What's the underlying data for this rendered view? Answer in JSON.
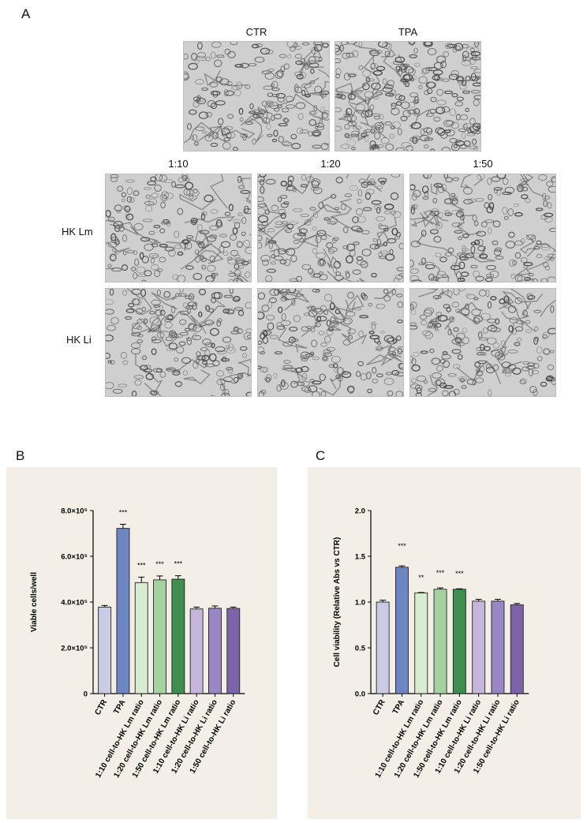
{
  "panels": {
    "a": "A",
    "b": "B",
    "c": "C"
  },
  "panel_a": {
    "top_labels": [
      "CTR",
      "TPA"
    ],
    "ratio_labels": [
      "1:10",
      "1:20",
      "1:50"
    ],
    "row_labels": [
      "HK Lm",
      "HK Li"
    ]
  },
  "colors": {
    "ctr": "#c9cce4",
    "tpa": "#6d86c2",
    "lm10": "#d8ecd2",
    "lm20": "#a5d2a0",
    "lm50": "#3e8e4f",
    "li10": "#c5b6da",
    "li20": "#9a86c4",
    "li50": "#7b65a8"
  },
  "chart_data": [
    {
      "type": "bar",
      "ylabel": "Viable cells/well",
      "ylim": [
        0,
        800000
      ],
      "yticks": [
        "0",
        "2.0×10⁵",
        "4.0×10⁵",
        "6.0×10⁵",
        "8.0×10⁵"
      ],
      "categories": [
        "CTR",
        "TPA",
        "1:10 cell-to-HK Lm ratio",
        "1:20 cell-to-HK Lm ratio",
        "1:50 cell-to-HK Lm ratio",
        "1:10 cell-to-HK Li ratio",
        "1:20 cell-to-HK Li ratio",
        "1:50 cell-to-HK Li ratio"
      ],
      "values": [
        378000,
        722000,
        485000,
        497000,
        500000,
        370000,
        373000,
        372000
      ],
      "errors": [
        7000,
        18000,
        24000,
        17000,
        15000,
        8000,
        10000,
        6000
      ],
      "annotations": [
        "",
        "***",
        "***",
        "***",
        "***",
        "",
        "",
        ""
      ],
      "grid": false
    },
    {
      "type": "bar",
      "ylabel": "Cell viability (Relative Abs vs CTR)",
      "ylim": [
        0,
        2.0
      ],
      "yticks": [
        "0.0",
        "0.5",
        "1.0",
        "1.5",
        "2.0"
      ],
      "categories": [
        "CTR",
        "TPA",
        "1:10 cell-to-HK Lm ratio",
        "1:20 cell-to-HK Lm ratio",
        "1:50 cell-to-HK Lm ratio",
        "1:10 cell-to-HK Li ratio",
        "1:20 cell-to-HK Li ratio",
        "1:50 cell-to-HK Li ratio"
      ],
      "values": [
        1.0,
        1.38,
        1.1,
        1.14,
        1.14,
        1.01,
        1.01,
        0.97
      ],
      "errors": [
        0.02,
        0.015,
        0.005,
        0.015,
        0.005,
        0.02,
        0.02,
        0.015
      ],
      "annotations": [
        "",
        "***",
        "**",
        "***",
        "***",
        "",
        "",
        ""
      ],
      "grid": false
    }
  ]
}
